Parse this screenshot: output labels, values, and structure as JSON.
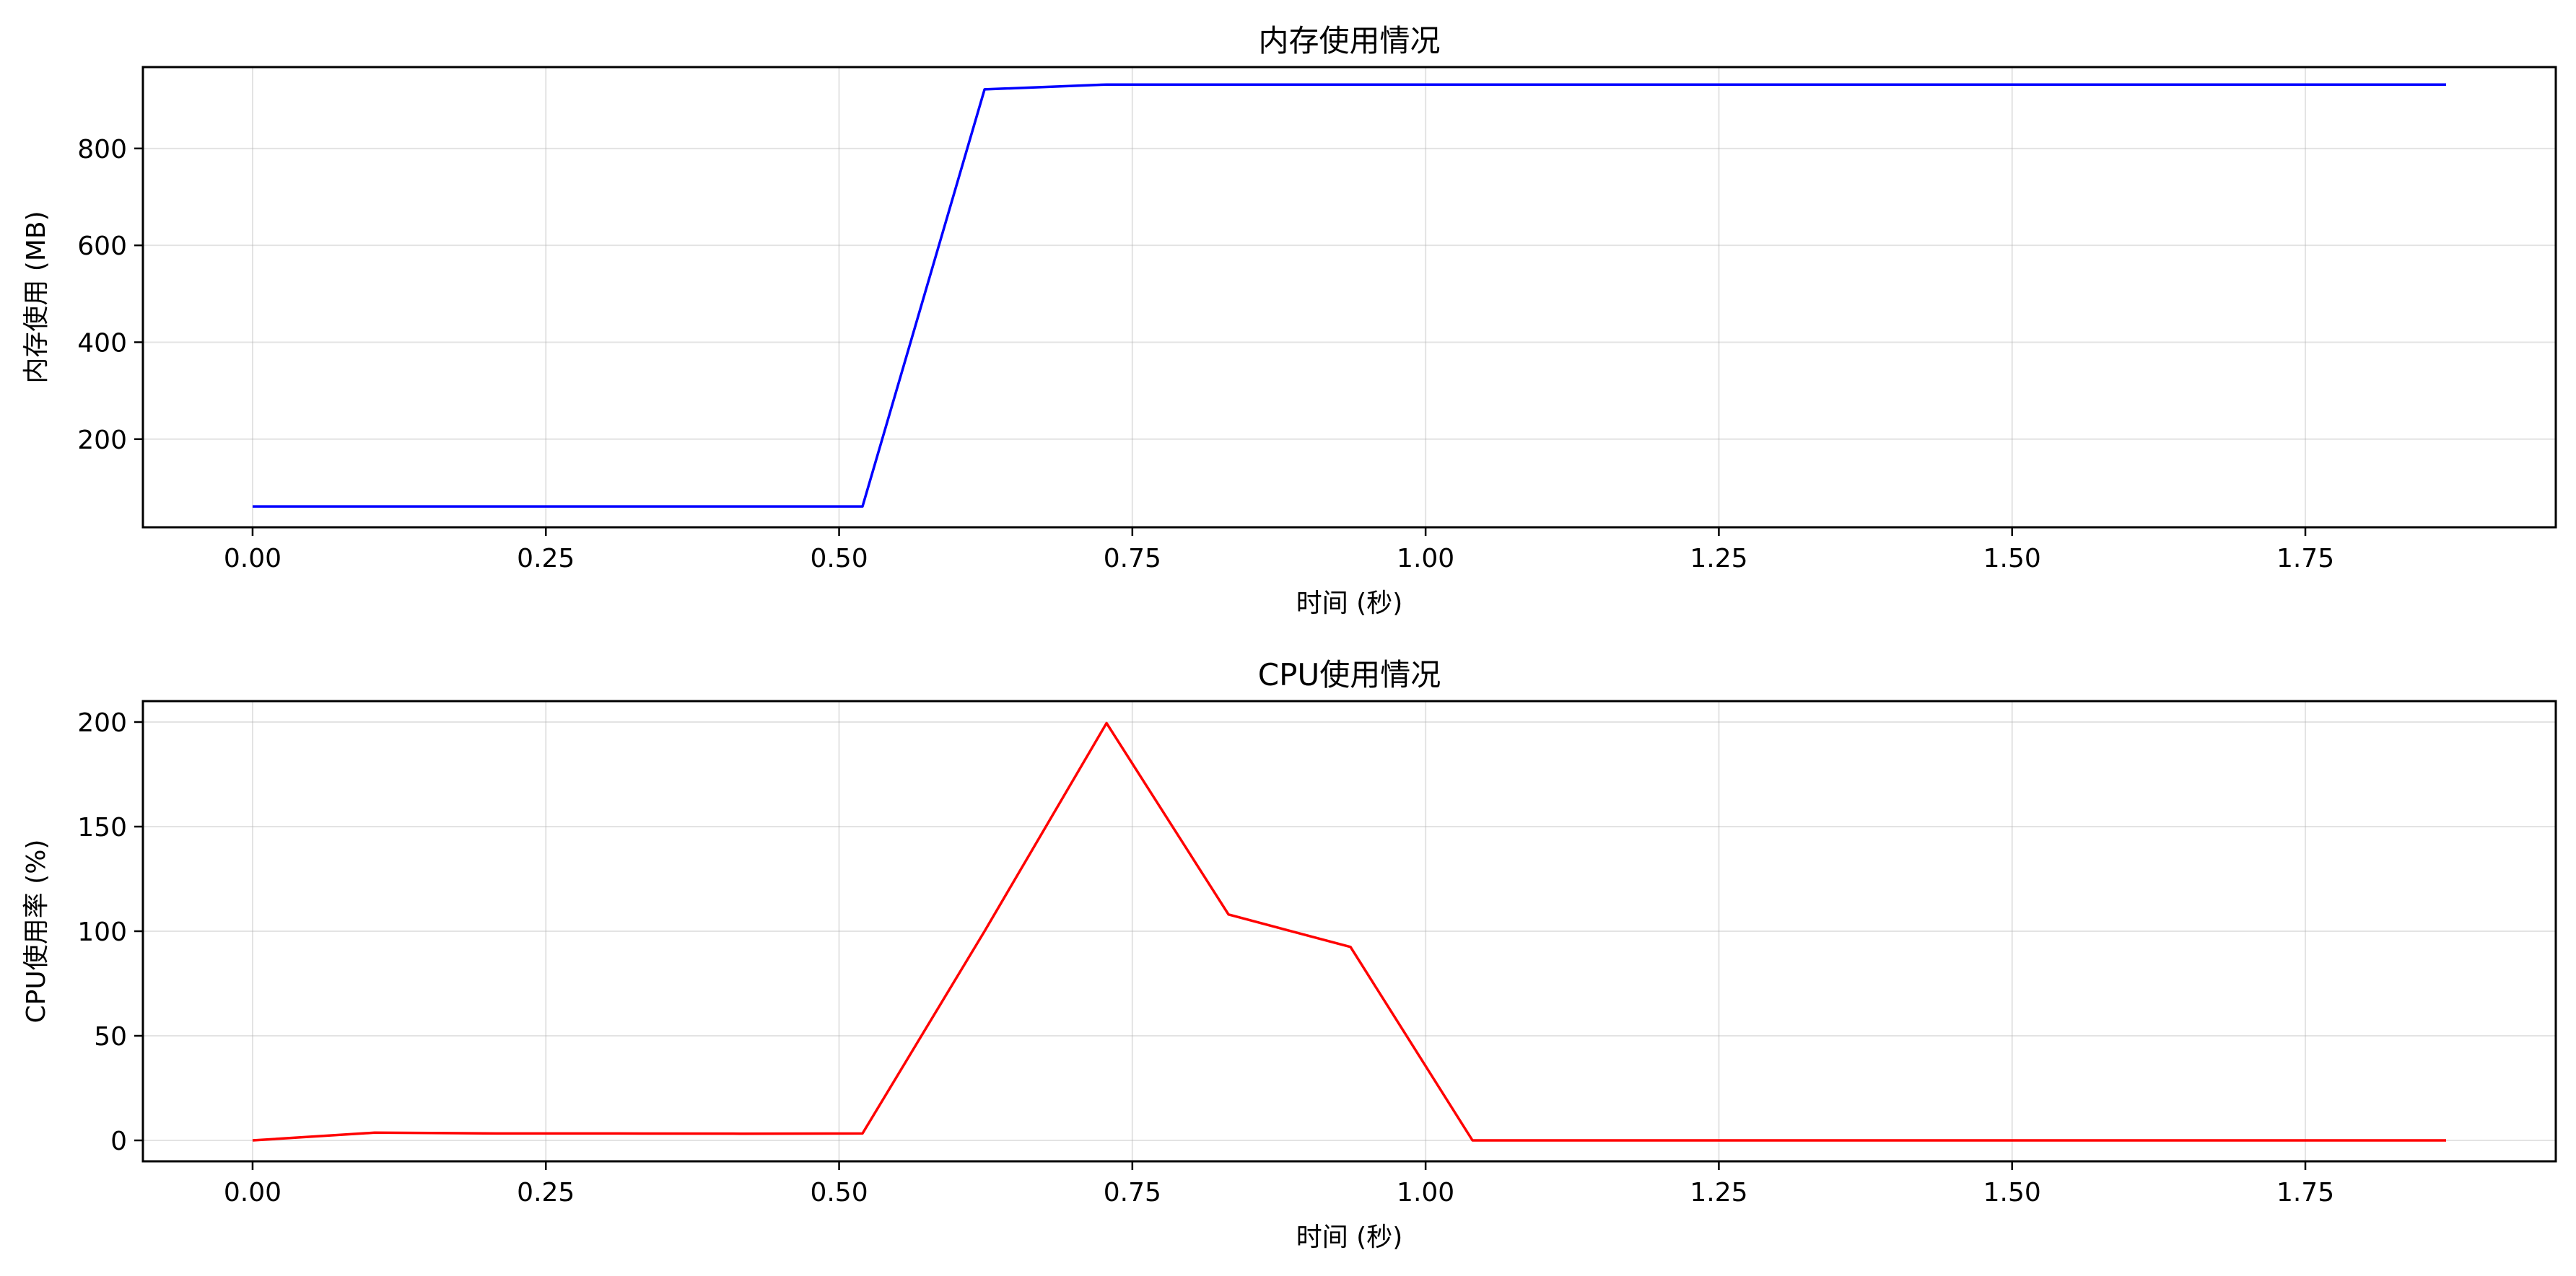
{
  "chart_data": [
    {
      "type": "line",
      "title": "内存使用情况",
      "xlabel": "时间 (秒)",
      "ylabel": "内存使用 (MB)",
      "xlim": [
        -0.0935,
        1.9635
      ],
      "ylim": [
        18,
        968
      ],
      "xticks": [
        0.0,
        0.25,
        0.5,
        0.75,
        1.0,
        1.25,
        1.5,
        1.75
      ],
      "xtick_labels": [
        "0.00",
        "0.25",
        "0.50",
        "0.75",
        "1.00",
        "1.25",
        "1.50",
        "1.75"
      ],
      "yticks": [
        200,
        400,
        600,
        800
      ],
      "ytick_labels": [
        "200",
        "400",
        "600",
        "800"
      ],
      "grid": true,
      "series": [
        {
          "color": "#0000ff",
          "x": [
            0.0,
            0.104,
            0.208,
            0.312,
            0.416,
            0.52,
            0.624,
            0.728,
            0.832,
            0.936,
            1.04,
            1.144,
            1.248,
            1.352,
            1.456,
            1.56,
            1.664,
            1.768,
            1.87
          ],
          "y": [
            61,
            61,
            61,
            61,
            61,
            61,
            922,
            932,
            932,
            932,
            932,
            932,
            932,
            932,
            932,
            932,
            932,
            932,
            932
          ]
        }
      ]
    },
    {
      "type": "line",
      "title": "CPU使用情况",
      "xlabel": "时间 (秒)",
      "ylabel": "CPU使用率 (%)",
      "xlim": [
        -0.0935,
        1.9635
      ],
      "ylim": [
        -10,
        210
      ],
      "xticks": [
        0.0,
        0.25,
        0.5,
        0.75,
        1.0,
        1.25,
        1.5,
        1.75
      ],
      "xtick_labels": [
        "0.00",
        "0.25",
        "0.50",
        "0.75",
        "1.00",
        "1.25",
        "1.50",
        "1.75"
      ],
      "yticks": [
        0,
        50,
        100,
        150,
        200
      ],
      "ytick_labels": [
        "0",
        "50",
        "100",
        "150",
        "200"
      ],
      "grid": true,
      "series": [
        {
          "color": "#ff0000",
          "x": [
            0.0,
            0.104,
            0.208,
            0.312,
            0.416,
            0.52,
            0.624,
            0.728,
            0.832,
            0.936,
            1.04,
            1.144,
            1.248,
            1.352,
            1.456,
            1.56,
            1.664,
            1.768,
            1.87
          ],
          "y": [
            0,
            3.7,
            3.3,
            3.3,
            3.2,
            3.3,
            100,
            199.5,
            108,
            92.5,
            0,
            0,
            0,
            0,
            0,
            0,
            0,
            0,
            0
          ]
        }
      ]
    }
  ]
}
